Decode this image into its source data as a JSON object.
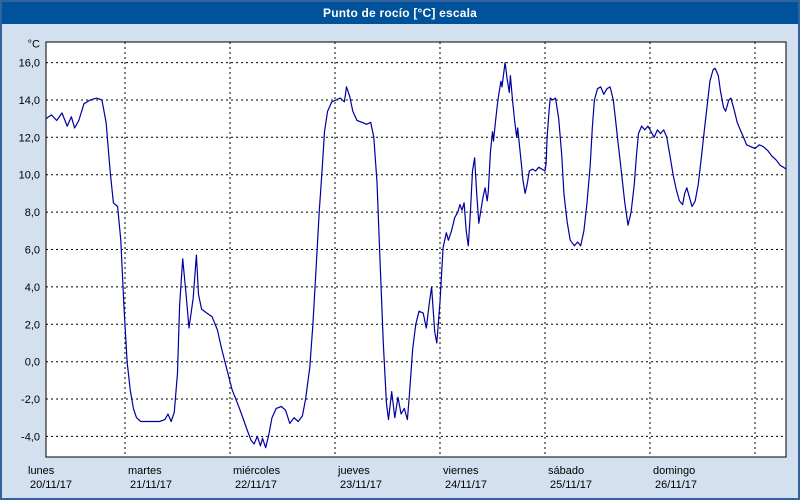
{
  "window": {
    "title": "Punto de rocío [°C] escala"
  },
  "colors": {
    "titlebar_bg": "#00529b",
    "titlebar_text": "#ffffff",
    "window_border": "#33619e",
    "panel_bg": "#d3e0ef",
    "plot_bg": "#ffffff",
    "grid": "#000000",
    "line": "#0000a0"
  },
  "chart_data": {
    "type": "line",
    "title": "Punto de rocío [°C] escala",
    "y_unit_label": "°C",
    "ylim": [
      -5.1,
      17.1
    ],
    "yticks": [
      -4,
      -2,
      0,
      2,
      4,
      6,
      8,
      10,
      12,
      14,
      16
    ],
    "ytick_labels": [
      "-4,0",
      "-2,0",
      "0,0",
      "2,0",
      "4,0",
      "6,0",
      "8,0",
      "10,0",
      "12,0",
      "14,0",
      "16,0"
    ],
    "grid_style": "dashed",
    "legend": "none",
    "x_unit": "days since lunes 20/11/17 00:00",
    "xlim_days": [
      0.248,
      7.295
    ],
    "day_gridlines": [
      1,
      2,
      3,
      4,
      5,
      6,
      7
    ],
    "x_days": [
      {
        "name": "lunes",
        "date": "20/11/17"
      },
      {
        "name": "martes",
        "date": "21/11/17"
      },
      {
        "name": "miércoles",
        "date": "22/11/17"
      },
      {
        "name": "jueves",
        "date": "23/11/17"
      },
      {
        "name": "viernes",
        "date": "24/11/17"
      },
      {
        "name": "sábado",
        "date": "25/11/17"
      },
      {
        "name": "domingo",
        "date": "26/11/17"
      }
    ],
    "series": [
      {
        "name": "Punto de rocío [°C]",
        "color": "#0000a0",
        "points": [
          [
            0.248,
            13.0
          ],
          [
            0.3,
            13.2
          ],
          [
            0.35,
            12.9
          ],
          [
            0.4,
            13.3
          ],
          [
            0.45,
            12.6
          ],
          [
            0.49,
            13.1
          ],
          [
            0.52,
            12.5
          ],
          [
            0.56,
            12.9
          ],
          [
            0.61,
            13.8
          ],
          [
            0.67,
            14.0
          ],
          [
            0.73,
            14.1
          ],
          [
            0.78,
            14.0
          ],
          [
            0.82,
            12.8
          ],
          [
            0.86,
            10.1
          ],
          [
            0.89,
            8.5
          ],
          [
            0.93,
            8.3
          ],
          [
            0.96,
            6.5
          ],
          [
            0.99,
            3.0
          ],
          [
            1.02,
            0.0
          ],
          [
            1.05,
            -1.5
          ],
          [
            1.08,
            -2.5
          ],
          [
            1.11,
            -3.0
          ],
          [
            1.15,
            -3.2
          ],
          [
            1.24,
            -3.2
          ],
          [
            1.33,
            -3.2
          ],
          [
            1.38,
            -3.1
          ],
          [
            1.41,
            -2.8
          ],
          [
            1.44,
            -3.2
          ],
          [
            1.47,
            -2.7
          ],
          [
            1.5,
            -0.6
          ],
          [
            1.52,
            3.0
          ],
          [
            1.55,
            5.5
          ],
          [
            1.58,
            3.7
          ],
          [
            1.61,
            1.8
          ],
          [
            1.65,
            3.4
          ],
          [
            1.68,
            5.7
          ],
          [
            1.7,
            3.6
          ],
          [
            1.73,
            2.8
          ],
          [
            1.78,
            2.6
          ],
          [
            1.83,
            2.4
          ],
          [
            1.88,
            1.7
          ],
          [
            1.92,
            0.7
          ],
          [
            1.97,
            -0.4
          ],
          [
            2.02,
            -1.5
          ],
          [
            2.07,
            -2.2
          ],
          [
            2.11,
            -2.8
          ],
          [
            2.16,
            -3.6
          ],
          [
            2.2,
            -4.2
          ],
          [
            2.23,
            -4.4
          ],
          [
            2.26,
            -4.0
          ],
          [
            2.29,
            -4.5
          ],
          [
            2.31,
            -4.1
          ],
          [
            2.34,
            -4.6
          ],
          [
            2.37,
            -3.9
          ],
          [
            2.4,
            -3.0
          ],
          [
            2.44,
            -2.5
          ],
          [
            2.49,
            -2.4
          ],
          [
            2.53,
            -2.6
          ],
          [
            2.57,
            -3.3
          ],
          [
            2.61,
            -3.0
          ],
          [
            2.65,
            -3.2
          ],
          [
            2.69,
            -2.9
          ],
          [
            2.72,
            -2.0
          ],
          [
            2.76,
            -0.3
          ],
          [
            2.79,
            2.0
          ],
          [
            2.82,
            5.0
          ],
          [
            2.85,
            8.0
          ],
          [
            2.88,
            10.5
          ],
          [
            2.9,
            12.3
          ],
          [
            2.93,
            13.4
          ],
          [
            2.97,
            13.9
          ],
          [
            3.01,
            14.0
          ],
          [
            3.05,
            14.1
          ],
          [
            3.09,
            13.9
          ],
          [
            3.11,
            14.7
          ],
          [
            3.14,
            14.2
          ],
          [
            3.17,
            13.4
          ],
          [
            3.21,
            12.9
          ],
          [
            3.26,
            12.8
          ],
          [
            3.3,
            12.7
          ],
          [
            3.34,
            12.8
          ],
          [
            3.37,
            12.0
          ],
          [
            3.4,
            9.6
          ],
          [
            3.43,
            5.3
          ],
          [
            3.46,
            1.0
          ],
          [
            3.49,
            -2.2
          ],
          [
            3.51,
            -3.1
          ],
          [
            3.54,
            -1.6
          ],
          [
            3.57,
            -3.0
          ],
          [
            3.6,
            -1.9
          ],
          [
            3.63,
            -2.8
          ],
          [
            3.66,
            -2.5
          ],
          [
            3.69,
            -3.1
          ],
          [
            3.71,
            -1.7
          ],
          [
            3.74,
            0.7
          ],
          [
            3.77,
            2.0
          ],
          [
            3.8,
            2.7
          ],
          [
            3.84,
            2.6
          ],
          [
            3.87,
            1.8
          ],
          [
            3.9,
            3.2
          ],
          [
            3.92,
            4.0
          ],
          [
            3.95,
            1.6
          ],
          [
            3.97,
            1.0
          ],
          [
            4.0,
            3.2
          ],
          [
            4.03,
            6.1
          ],
          [
            4.06,
            6.9
          ],
          [
            4.08,
            6.5
          ],
          [
            4.11,
            7.0
          ],
          [
            4.14,
            7.7
          ],
          [
            4.17,
            8.0
          ],
          [
            4.19,
            8.4
          ],
          [
            4.21,
            8.1
          ],
          [
            4.23,
            8.5
          ],
          [
            4.25,
            7.0
          ],
          [
            4.27,
            6.2
          ],
          [
            4.29,
            8.0
          ],
          [
            4.31,
            10.2
          ],
          [
            4.33,
            10.9
          ],
          [
            4.35,
            9.0
          ],
          [
            4.37,
            7.4
          ],
          [
            4.39,
            8.1
          ],
          [
            4.41,
            8.8
          ],
          [
            4.43,
            9.3
          ],
          [
            4.45,
            8.6
          ],
          [
            4.46,
            9.1
          ],
          [
            4.48,
            11.2
          ],
          [
            4.5,
            12.3
          ],
          [
            4.51,
            11.8
          ],
          [
            4.53,
            12.9
          ],
          [
            4.55,
            13.9
          ],
          [
            4.56,
            14.3
          ],
          [
            4.58,
            15.0
          ],
          [
            4.59,
            14.7
          ],
          [
            4.61,
            15.6
          ],
          [
            4.62,
            16.0
          ],
          [
            4.64,
            15.1
          ],
          [
            4.66,
            14.4
          ],
          [
            4.67,
            15.3
          ],
          [
            4.69,
            14.0
          ],
          [
            4.71,
            12.9
          ],
          [
            4.73,
            12.0
          ],
          [
            4.74,
            12.5
          ],
          [
            4.76,
            11.4
          ],
          [
            4.79,
            9.7
          ],
          [
            4.81,
            9.0
          ],
          [
            4.83,
            9.5
          ],
          [
            4.85,
            10.2
          ],
          [
            4.88,
            10.3
          ],
          [
            4.91,
            10.2
          ],
          [
            4.94,
            10.4
          ],
          [
            4.97,
            10.3
          ],
          [
            5.0,
            10.2
          ],
          [
            5.01,
            10.6
          ],
          [
            5.02,
            12.0
          ],
          [
            5.04,
            13.5
          ],
          [
            5.05,
            14.1
          ],
          [
            5.07,
            14.0
          ],
          [
            5.1,
            14.1
          ],
          [
            5.13,
            13.0
          ],
          [
            5.16,
            11.0
          ],
          [
            5.18,
            9.0
          ],
          [
            5.21,
            7.5
          ],
          [
            5.24,
            6.5
          ],
          [
            5.28,
            6.2
          ],
          [
            5.31,
            6.4
          ],
          [
            5.34,
            6.2
          ],
          [
            5.37,
            7.0
          ],
          [
            5.4,
            8.5
          ],
          [
            5.43,
            10.5
          ],
          [
            5.45,
            12.5
          ],
          [
            5.47,
            14.0
          ],
          [
            5.5,
            14.6
          ],
          [
            5.53,
            14.7
          ],
          [
            5.56,
            14.3
          ],
          [
            5.59,
            14.6
          ],
          [
            5.62,
            14.7
          ],
          [
            5.65,
            14.0
          ],
          [
            5.67,
            13.0
          ],
          [
            5.7,
            11.5
          ],
          [
            5.73,
            10.0
          ],
          [
            5.76,
            8.5
          ],
          [
            5.79,
            7.3
          ],
          [
            5.82,
            8.0
          ],
          [
            5.85,
            9.5
          ],
          [
            5.87,
            11.0
          ],
          [
            5.89,
            12.2
          ],
          [
            5.92,
            12.6
          ],
          [
            5.95,
            12.4
          ],
          [
            5.98,
            12.6
          ],
          [
            6.01,
            12.3
          ],
          [
            6.04,
            12.0
          ],
          [
            6.07,
            12.4
          ],
          [
            6.1,
            12.2
          ],
          [
            6.13,
            12.4
          ],
          [
            6.16,
            12.0
          ],
          [
            6.19,
            11.0
          ],
          [
            6.22,
            10.0
          ],
          [
            6.25,
            9.2
          ],
          [
            6.28,
            8.6
          ],
          [
            6.31,
            8.4
          ],
          [
            6.33,
            9.0
          ],
          [
            6.35,
            9.3
          ],
          [
            6.37,
            8.9
          ],
          [
            6.4,
            8.3
          ],
          [
            6.43,
            8.6
          ],
          [
            6.46,
            9.5
          ],
          [
            6.49,
            11.0
          ],
          [
            6.52,
            12.5
          ],
          [
            6.55,
            14.0
          ],
          [
            6.57,
            15.0
          ],
          [
            6.6,
            15.6
          ],
          [
            6.62,
            15.7
          ],
          [
            6.65,
            15.3
          ],
          [
            6.67,
            14.5
          ],
          [
            6.7,
            13.6
          ],
          [
            6.72,
            13.4
          ],
          [
            6.75,
            14.0
          ],
          [
            6.77,
            14.1
          ],
          [
            6.8,
            13.5
          ],
          [
            6.83,
            12.8
          ],
          [
            6.86,
            12.4
          ],
          [
            6.89,
            12.0
          ],
          [
            6.92,
            11.6
          ],
          [
            6.96,
            11.5
          ],
          [
            7.0,
            11.4
          ],
          [
            7.04,
            11.6
          ],
          [
            7.08,
            11.5
          ],
          [
            7.12,
            11.3
          ],
          [
            7.16,
            11.0
          ],
          [
            7.2,
            10.8
          ],
          [
            7.24,
            10.5
          ],
          [
            7.27,
            10.4
          ],
          [
            7.295,
            10.3
          ]
        ]
      }
    ]
  }
}
